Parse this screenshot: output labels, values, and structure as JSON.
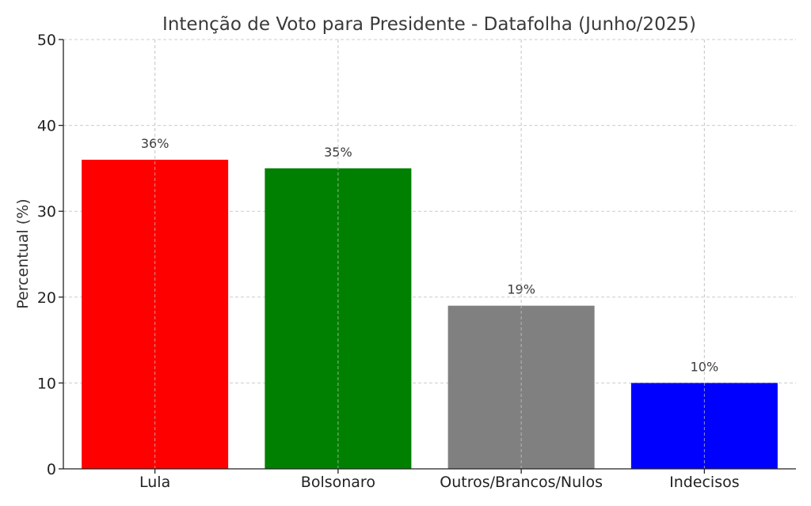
{
  "chart_data": {
    "type": "bar",
    "title": "Intenção de Voto para Presidente - Datafolha (Junho/2025)",
    "xlabel": "",
    "ylabel": "Percentual (%)",
    "ylim": [
      0,
      50
    ],
    "yticks": [
      0,
      10,
      20,
      30,
      40,
      50
    ],
    "grid": true,
    "categories": [
      "Lula",
      "Bolsonaro",
      "Outros/Brancos/Nulos",
      "Indecisos"
    ],
    "values": [
      36,
      35,
      19,
      10
    ],
    "data_labels": [
      "36%",
      "35%",
      "19%",
      "10%"
    ],
    "colors": [
      "#ff0000",
      "#008000",
      "#808080",
      "#0000ff"
    ]
  }
}
